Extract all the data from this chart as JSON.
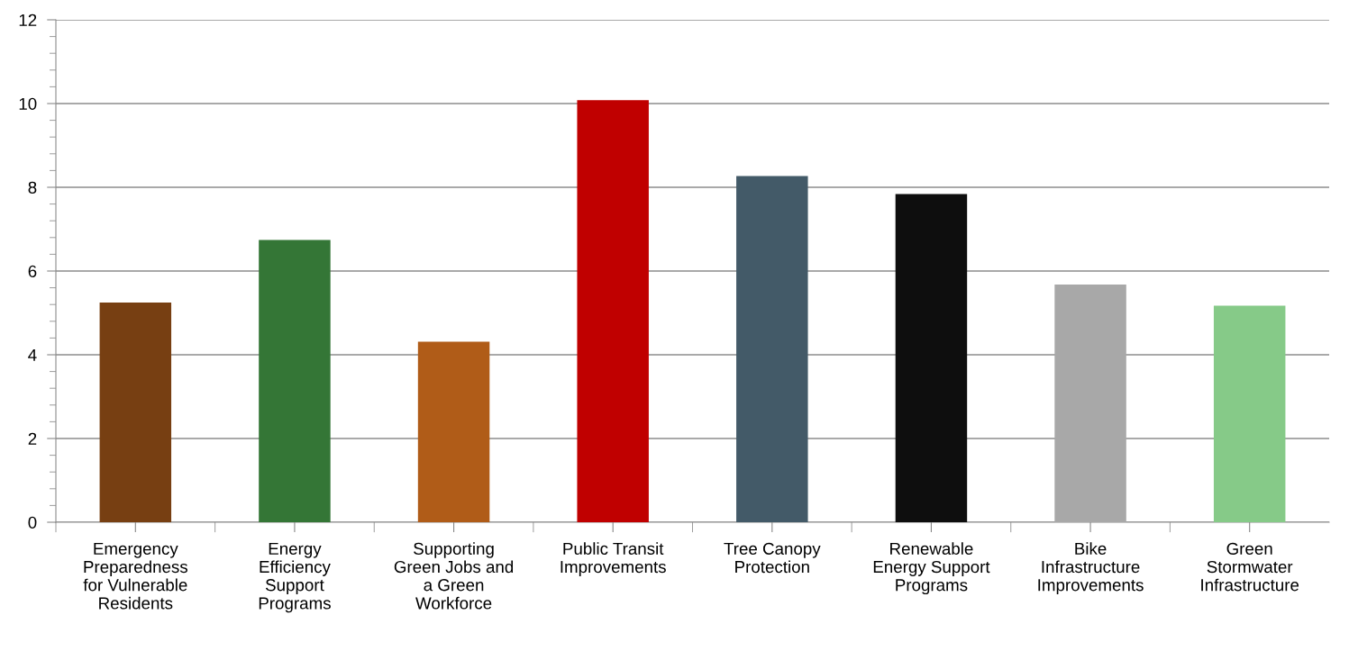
{
  "chart_data": {
    "type": "bar",
    "categories": [
      "Emergency Preparedness for Vulnerable Residents",
      "Energy Efficiency Support Programs",
      "Supporting Green Jobs and a Green Workforce",
      "Public Transit Improvements",
      "Tree Canopy Protection",
      "Renewable Energy Support Programs",
      "Bike Infrastructure Improvements",
      "Green Stormwater Infrastructure"
    ],
    "values": [
      5.25,
      6.74,
      4.31,
      10.08,
      8.27,
      7.84,
      5.68,
      5.17
    ],
    "colors": [
      "#773f12",
      "#347636",
      "#b05c18",
      "#c00000",
      "#435a68",
      "#0e0e0e",
      "#a8a8a8",
      "#86ca88"
    ],
    "ylim": [
      0,
      12
    ],
    "yticks": [
      0,
      2,
      4,
      6,
      8,
      10,
      12
    ],
    "grid": "y"
  }
}
